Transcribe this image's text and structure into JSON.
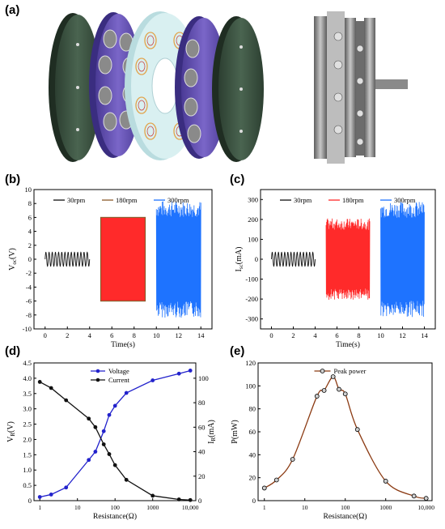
{
  "panels": {
    "a": "(a)",
    "b": "(b)",
    "c": "(c)",
    "d": "(d)",
    "e": "(e)"
  },
  "colors": {
    "black": "#111111",
    "brown": "#8b5a2b",
    "red": "#ff2a2a",
    "blue": "#1e73ff",
    "voltage": "#2222cc",
    "current": "#111111",
    "power_line": "#8b3a12",
    "disc_green": "#3d5542",
    "disc_purple": "#6a58b8",
    "disc_cyan": "#cde8ea",
    "metal": "#9a9a9a"
  },
  "figure_a": {
    "description_icons": [
      "exploded-disc-assembly-icon",
      "assembled-generator-photo-icon"
    ]
  },
  "chart_data": [
    {
      "id": "b",
      "type": "line",
      "xlabel": "Time(s)",
      "ylabel_main": "V",
      "ylabel_sub": "oc",
      "ylabel_unit": "(V)",
      "xlim": [
        -1,
        15
      ],
      "ylim": [
        -10,
        10
      ],
      "xticks": [
        0,
        2,
        4,
        6,
        8,
        10,
        12,
        14
      ],
      "yticks": [
        -10,
        -8,
        -6,
        -4,
        -2,
        0,
        2,
        4,
        6,
        8,
        10
      ],
      "series": [
        {
          "name": "30rpm",
          "color": "#111111",
          "t": [
            0,
            4
          ],
          "amplitude": 1.0,
          "cycles": 14,
          "style": "sine"
        },
        {
          "name": "180rpm",
          "color": "#ff2a2a",
          "edge": "#8b5a2b",
          "t": [
            5,
            9
          ],
          "amplitude": 6.0,
          "style": "block"
        },
        {
          "name": "300rpm",
          "color": "#1e73ff",
          "t": [
            10,
            14
          ],
          "amplitude": 8.4,
          "style": "spikes"
        }
      ]
    },
    {
      "id": "c",
      "type": "line",
      "xlabel": "Time(s)",
      "ylabel_main": "I",
      "ylabel_sub": "sc",
      "ylabel_unit": "(mA)",
      "xlim": [
        -1,
        15
      ],
      "ylim": [
        -350,
        350
      ],
      "xticks": [
        0,
        2,
        4,
        6,
        8,
        10,
        12,
        14
      ],
      "yticks": [
        -300,
        -200,
        -100,
        0,
        100,
        200,
        300
      ],
      "series": [
        {
          "name": "30rpm",
          "color": "#111111",
          "t": [
            0,
            4
          ],
          "amplitude": 35,
          "cycles": 14,
          "style": "sine"
        },
        {
          "name": "180rpm",
          "color": "#ff2a2a",
          "t": [
            5,
            9
          ],
          "amplitude": 205,
          "style": "spikes"
        },
        {
          "name": "300rpm",
          "color": "#1e73ff",
          "t": [
            10,
            14
          ],
          "amplitude": 290,
          "style": "spikes"
        }
      ]
    },
    {
      "id": "d",
      "type": "line",
      "xlabel": "Resistance(Ω)",
      "ylabel_left_main": "V",
      "ylabel_left_sub": "R",
      "ylabel_left_unit": "(V)",
      "ylabel_right_main": "I",
      "ylabel_right_sub": "R",
      "ylabel_right_unit": "(mA)",
      "xscale": "log",
      "xlim": [
        0.7,
        14000
      ],
      "ylim_left": [
        0,
        4.5
      ],
      "ylim_right": [
        0,
        112.5
      ],
      "xticks": [
        1,
        10,
        100,
        1000,
        10000
      ],
      "xtick_labels": [
        "1",
        "10",
        "100",
        "1000",
        "10,000"
      ],
      "yticks_left": [
        0,
        0.5,
        1.0,
        1.5,
        2.0,
        2.5,
        3.0,
        3.5,
        4.0,
        4.5
      ],
      "ytick_labels_left": [
        "0",
        "0.5",
        "1.0",
        "1.5",
        "2.0",
        "2.5",
        "3.0",
        "3.5",
        "4.0",
        "4.5"
      ],
      "yticks_right": [
        0,
        20,
        40,
        60,
        80,
        100
      ],
      "series": [
        {
          "name": "Voltage",
          "axis": "left",
          "color": "#2222cc",
          "x": [
            1,
            2,
            5,
            20,
            30,
            50,
            70,
            100,
            200,
            1000,
            5000,
            10000
          ],
          "y": [
            0.12,
            0.2,
            0.43,
            1.33,
            1.6,
            2.27,
            2.8,
            3.1,
            3.52,
            3.93,
            4.15,
            4.25
          ]
        },
        {
          "name": "Current",
          "axis": "right",
          "color": "#111111",
          "x": [
            1,
            2,
            5,
            20,
            30,
            50,
            70,
            100,
            200,
            1000,
            5000,
            10000
          ],
          "y": [
            97,
            92,
            82,
            67,
            60,
            46,
            38,
            29,
            17,
            4,
            1,
            0.5
          ]
        }
      ],
      "legend": "top-center"
    },
    {
      "id": "e",
      "type": "line",
      "xlabel": "Resistance(Ω)",
      "ylabel": "P(mW)",
      "xscale": "log",
      "xlim": [
        0.7,
        14000
      ],
      "ylim": [
        0,
        120
      ],
      "xticks": [
        1,
        10,
        100,
        1000,
        10000
      ],
      "xtick_labels": [
        "1",
        "10",
        "100",
        "1000",
        "10,000"
      ],
      "yticks": [
        0,
        20,
        40,
        60,
        80,
        100,
        120
      ],
      "series": [
        {
          "name": "Peak power",
          "color": "#8b3a12",
          "x": [
            1,
            2,
            5,
            20,
            30,
            50,
            70,
            100,
            200,
            1000,
            5000,
            10000
          ],
          "y": [
            11,
            18,
            36,
            91,
            96,
            108,
            97,
            93,
            62,
            17,
            4,
            2
          ]
        }
      ],
      "legend": "top-center"
    }
  ]
}
